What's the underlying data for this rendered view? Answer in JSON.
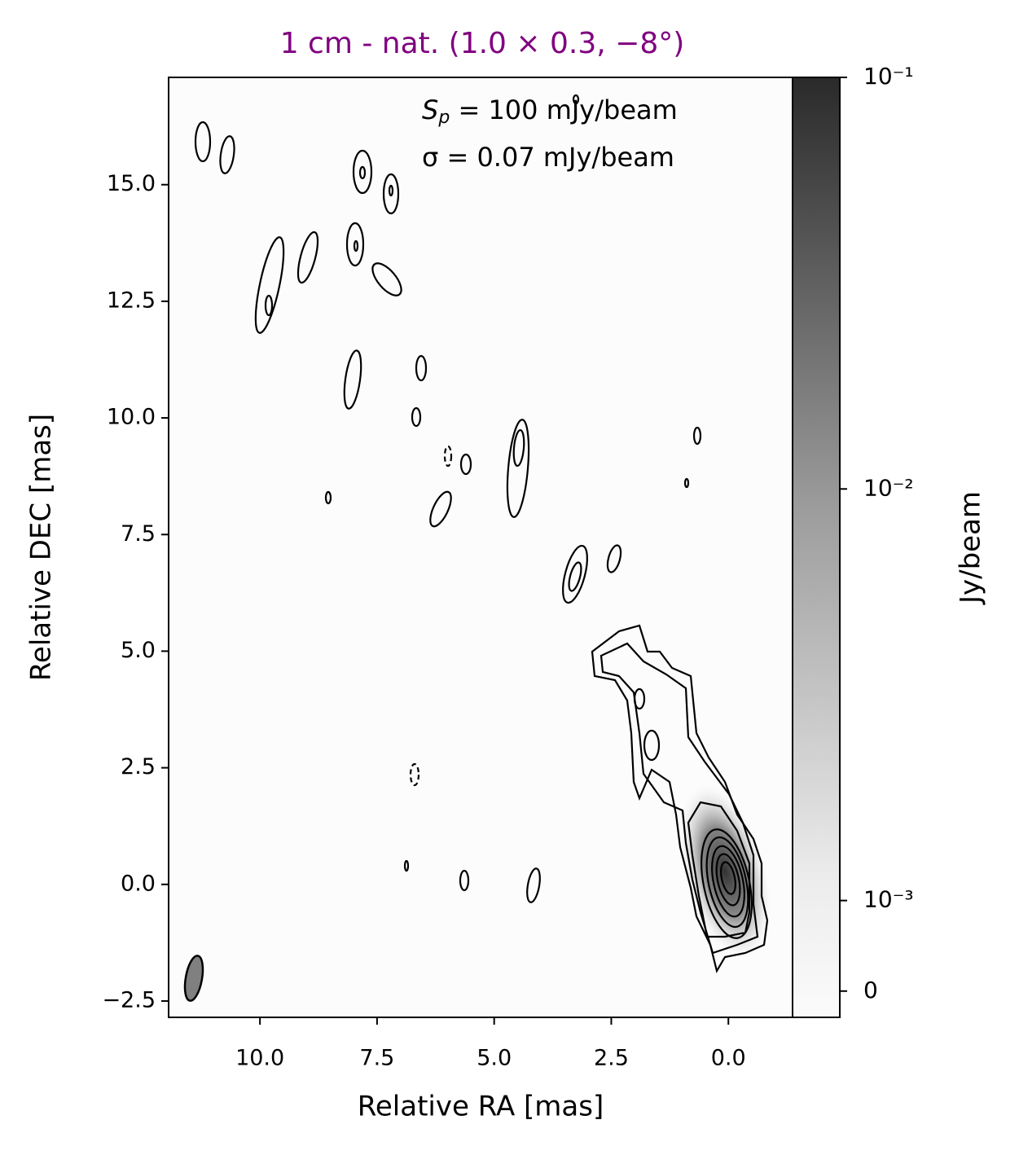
{
  "chart_data": {
    "type": "image",
    "title": "1 cm - nat. (1.0 × 0.3, −8°)",
    "xlabel": "Relative RA [mas]",
    "ylabel": "Relative DEC [mas]",
    "annotation_peak": {
      "symbol": "S",
      "subscript": "p",
      "text": " = 100 mJy/beam"
    },
    "annotation_noise": "σ = 0.07 mJy/beam",
    "xlim": [
      11.95,
      -1.37
    ],
    "ylim": [
      -2.85,
      17.3
    ],
    "xticks": [
      {
        "value": 10,
        "label": "10.0"
      },
      {
        "value": 7.5,
        "label": "7.5"
      },
      {
        "value": 5,
        "label": "5.0"
      },
      {
        "value": 2.5,
        "label": "2.5"
      },
      {
        "value": 0,
        "label": "0.0"
      }
    ],
    "yticks": [
      {
        "value": -2.5,
        "label": "−2.5"
      },
      {
        "value": 0,
        "label": "0.0"
      },
      {
        "value": 2.5,
        "label": "2.5"
      },
      {
        "value": 5,
        "label": "5.0"
      },
      {
        "value": 7.5,
        "label": "7.5"
      },
      {
        "value": 10,
        "label": "10.0"
      },
      {
        "value": 12.5,
        "label": "12.5"
      },
      {
        "value": 15,
        "label": "15.0"
      }
    ],
    "colorbar": {
      "label": "Jy/beam",
      "scale": "symlog",
      "linthresh": 0.001,
      "clim": [
        -0.00029,
        0.1
      ],
      "ticks": [
        {
          "value": 0.1,
          "label": "10⁻¹"
        },
        {
          "value": 0.01,
          "label": "10⁻²"
        },
        {
          "value": 0.001,
          "label": "10⁻³"
        },
        0
      ]
    },
    "title_color": "#800080",
    "contour_color": "#000000"
  }
}
